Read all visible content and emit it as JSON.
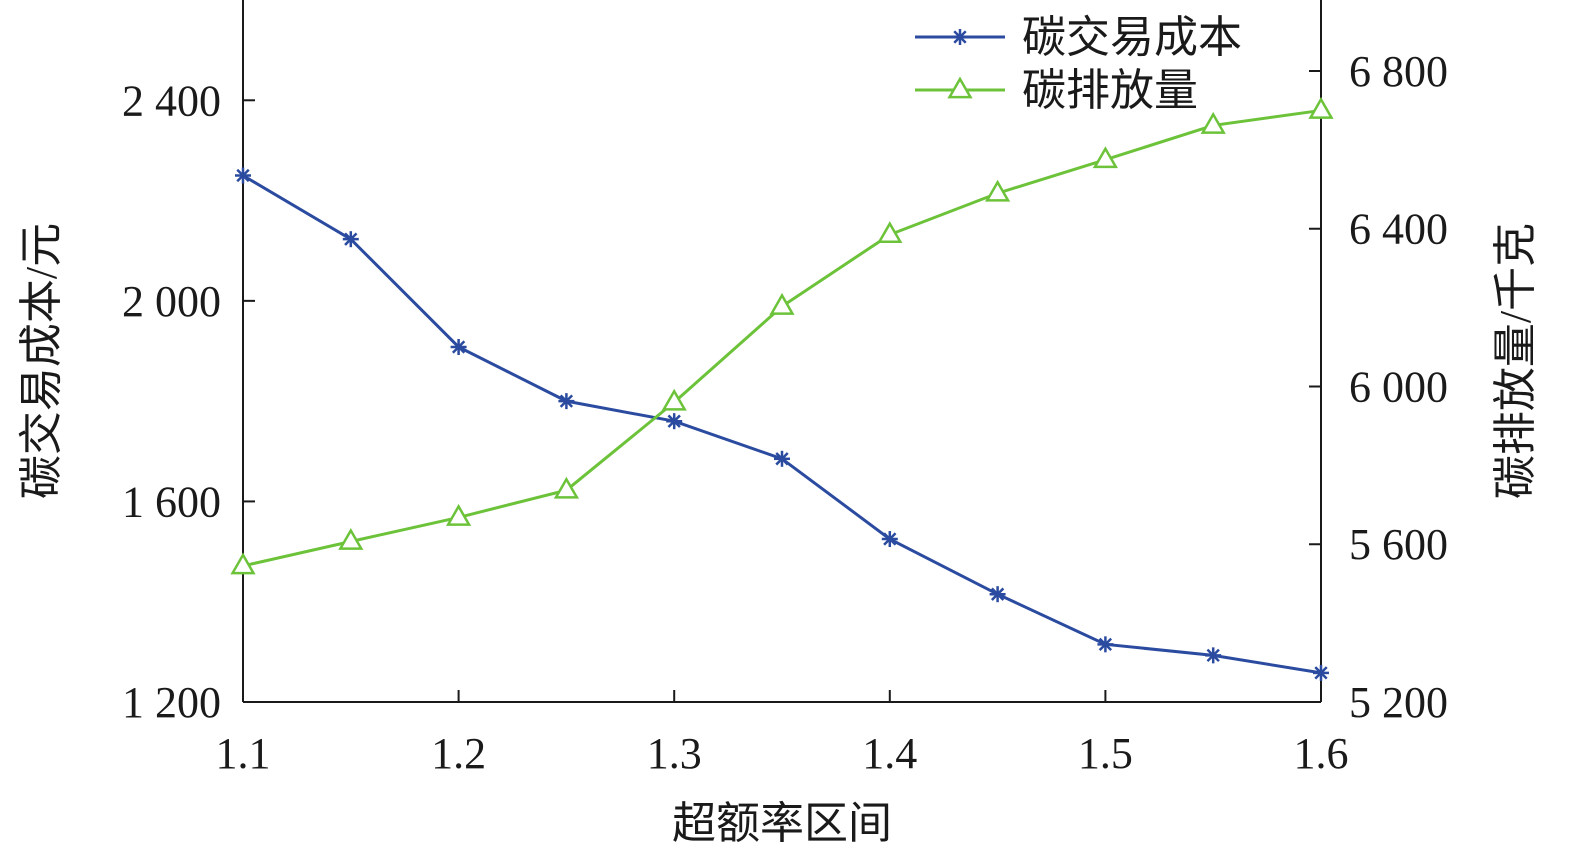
{
  "chart_data": {
    "type": "line",
    "title": "",
    "xlabel": "超额率区间",
    "ylabel_left": "碳交易成本/元",
    "ylabel_right": "碳排放量/千克",
    "x": [
      1.1,
      1.15,
      1.2,
      1.25,
      1.3,
      1.35,
      1.4,
      1.45,
      1.5,
      1.55,
      1.6
    ],
    "x_ticks": [
      1.1,
      1.2,
      1.3,
      1.4,
      1.5,
      1.6
    ],
    "x_tick_labels": [
      "1.1",
      "1.2",
      "1.3",
      "1.4",
      "1.5",
      "1.6"
    ],
    "xlim": [
      1.1,
      1.6
    ],
    "ylim_left": [
      1200,
      2600
    ],
    "ylim_right": [
      5200,
      6980
    ],
    "y_ticks_left": [
      1200,
      1600,
      2000,
      2400
    ],
    "y_tick_labels_left": [
      "1 200",
      "1 600",
      "2 000",
      "2 400"
    ],
    "y_ticks_right": [
      5200,
      5600,
      6000,
      6400,
      6800
    ],
    "y_tick_labels_right": [
      "5 200",
      "5 600",
      "6 000",
      "6 400",
      "6 800"
    ],
    "grid": false,
    "legend_position": "top-right",
    "series": [
      {
        "name": "碳交易成本",
        "axis": "left",
        "marker": "asterisk",
        "color": "#2b4ba0",
        "values": [
          2250,
          2123,
          1908,
          1800,
          1760,
          1685,
          1525,
          1415,
          1315,
          1293,
          1258
        ]
      },
      {
        "name": "碳排放量",
        "axis": "right",
        "marker": "triangle",
        "color": "#6cc33a",
        "values": [
          5545,
          5607,
          5668,
          5737,
          5960,
          6203,
          6385,
          6490,
          6575,
          6662,
          6700
        ]
      }
    ]
  }
}
